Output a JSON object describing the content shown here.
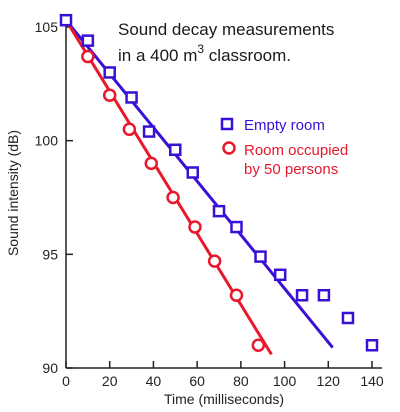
{
  "chart_data": {
    "type": "scatter",
    "title_line1": "Sound decay measurements",
    "title_line2_prefix": "in a 400  m",
    "title_line2_sup": "3",
    "title_line2_suffix": " classroom.",
    "xlabel": "Time (milliseconds)",
    "ylabel": "Sound intensity (dB)",
    "xlim": [
      0,
      140
    ],
    "ylim": [
      90,
      105
    ],
    "x_ticks": [
      0,
      20,
      40,
      60,
      80,
      100,
      120,
      140
    ],
    "y_ticks": [
      90,
      95,
      100,
      105
    ],
    "grid": false,
    "legend_position": "right",
    "series": [
      {
        "name": "Empty room",
        "marker": "square",
        "color": "#3a10d6",
        "points": [
          [
            0,
            105.3
          ],
          [
            10,
            104.4
          ],
          [
            20,
            103.0
          ],
          [
            30,
            101.9
          ],
          [
            38,
            100.4
          ],
          [
            50,
            99.6
          ],
          [
            58,
            98.6
          ],
          [
            70,
            96.9
          ],
          [
            78,
            96.2
          ],
          [
            89,
            94.9
          ],
          [
            98,
            94.1
          ],
          [
            108,
            93.2
          ],
          [
            118,
            93.2
          ],
          [
            129,
            92.2
          ],
          [
            140,
            91.0
          ]
        ],
        "fit": [
          [
            0,
            105.3
          ],
          [
            122,
            90.9
          ]
        ]
      },
      {
        "name": "Room occupied by 50 persons",
        "name_line1": "Room occupied",
        "name_line2": "by 50 persons",
        "marker": "circle",
        "color": "#e8182d",
        "points": [
          [
            10,
            103.7
          ],
          [
            20,
            102.0
          ],
          [
            29,
            100.5
          ],
          [
            39,
            99.0
          ],
          [
            49,
            97.5
          ],
          [
            59,
            96.2
          ],
          [
            68,
            94.7
          ],
          [
            78,
            93.2
          ],
          [
            88,
            91.0
          ]
        ],
        "fit": [
          [
            0,
            105.3
          ],
          [
            94,
            90.6
          ]
        ]
      }
    ]
  }
}
